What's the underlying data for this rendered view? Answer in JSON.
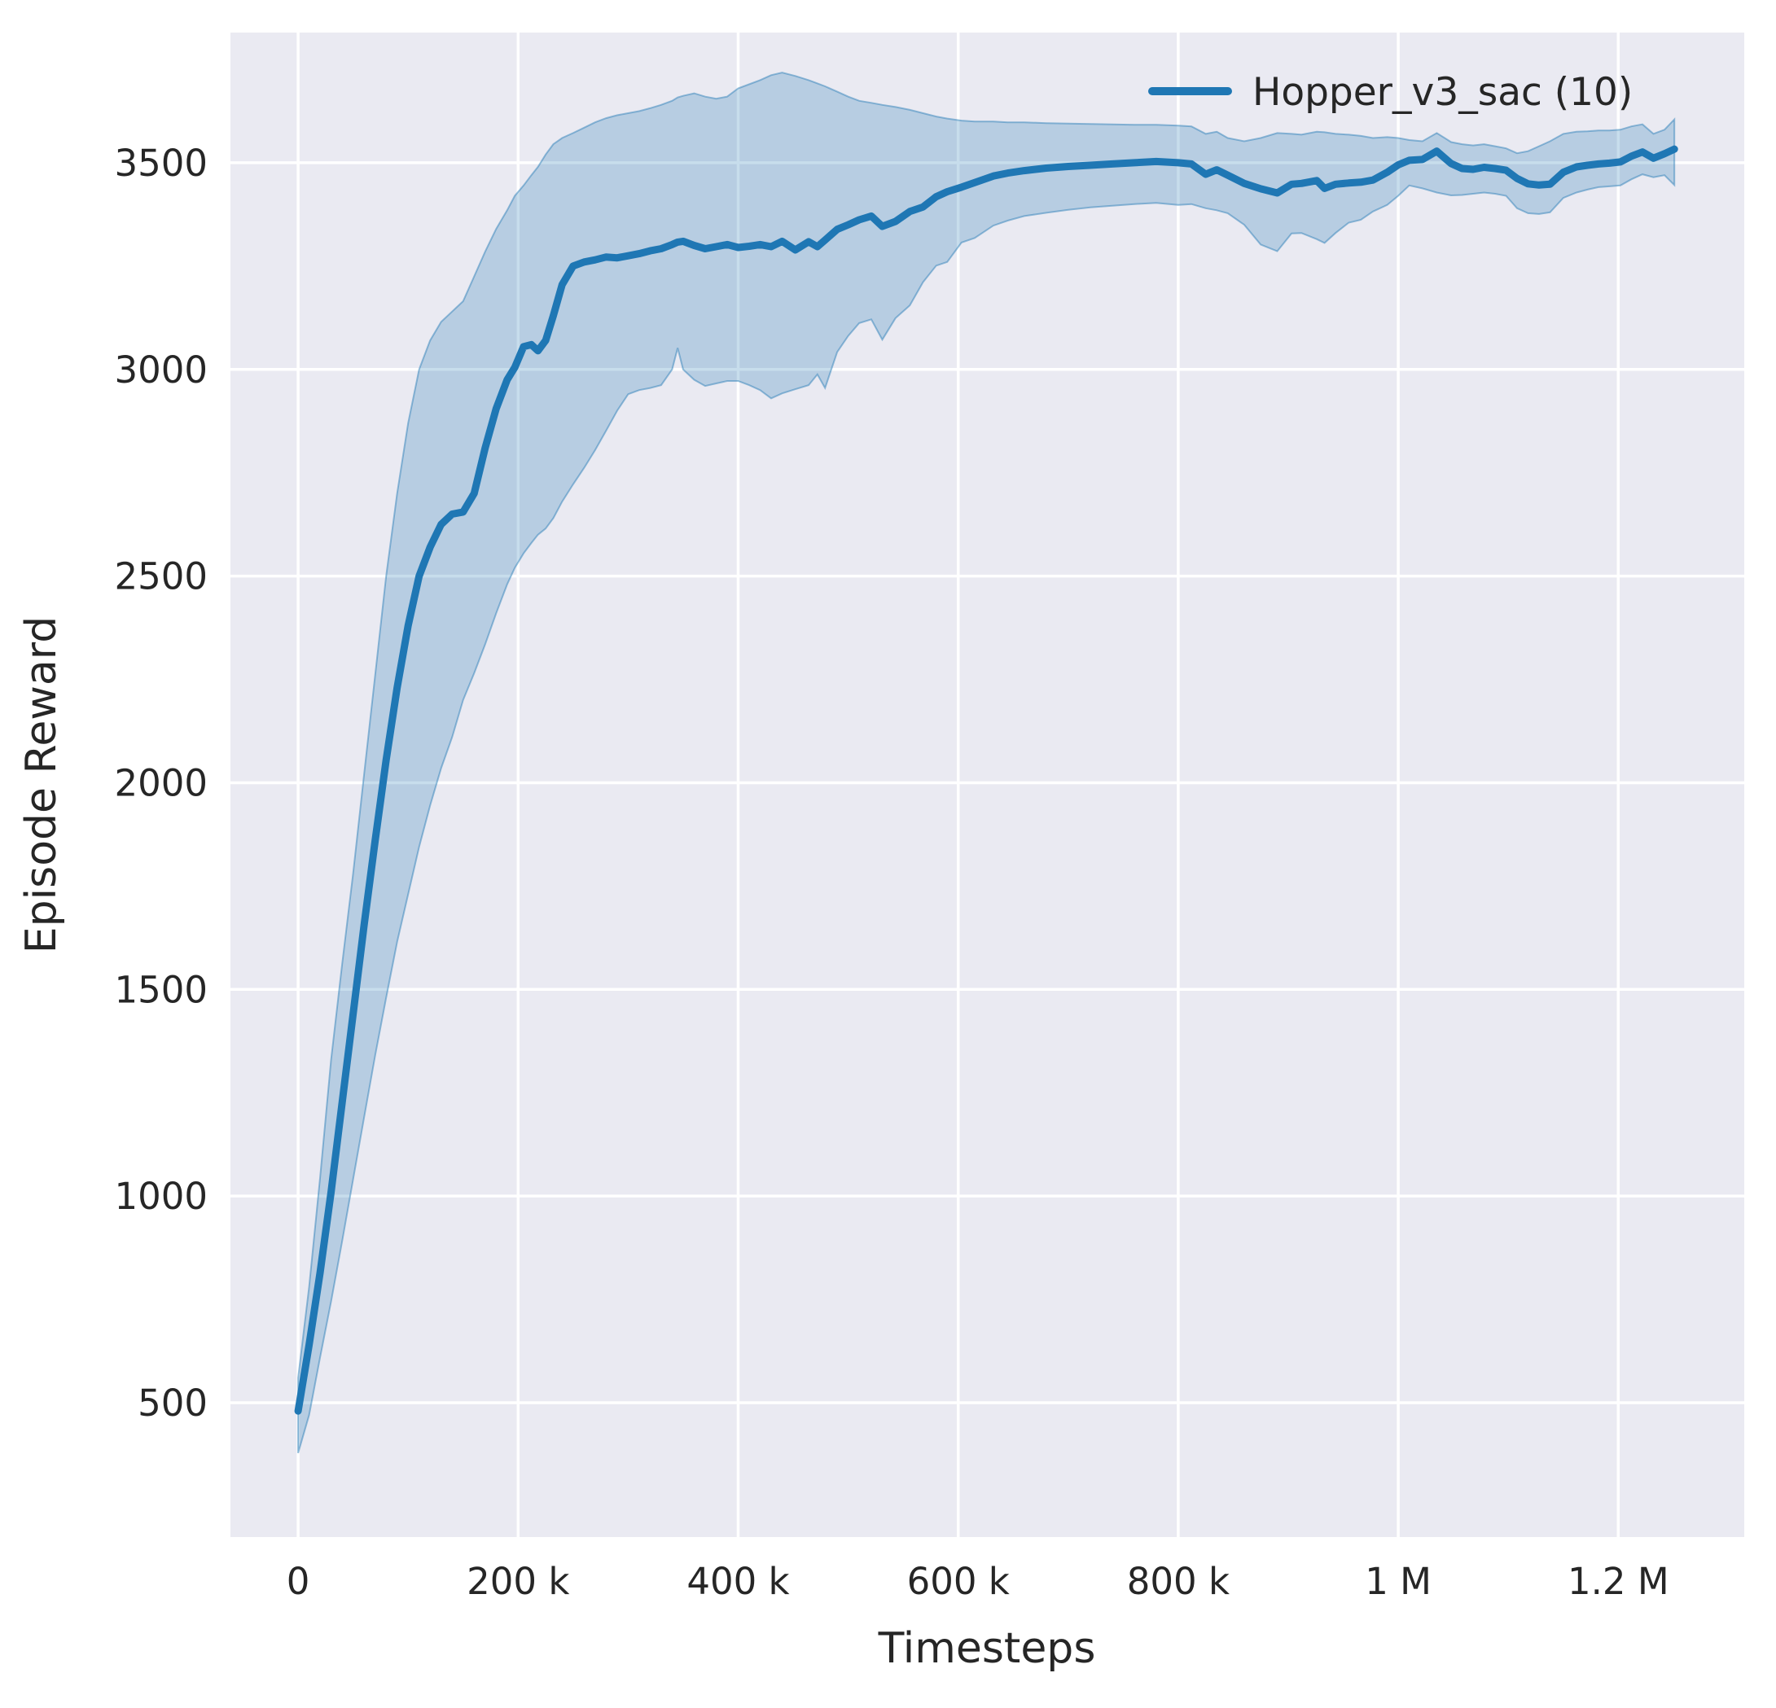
{
  "chart_data": {
    "type": "line",
    "title": "",
    "xlabel": "Timesteps",
    "ylabel": "Episode Reward",
    "grid": true,
    "legend_position": "upper right",
    "background_color": "#eaeaf2",
    "grid_color": "#ffffff",
    "text_color": "#262626",
    "xlim": [
      -61500,
      1314500
    ],
    "ylim": [
      175,
      3815
    ],
    "x_ticks": [
      {
        "value": 0,
        "label": "0"
      },
      {
        "value": 200000,
        "label": "200 k"
      },
      {
        "value": 400000,
        "label": "400 k"
      },
      {
        "value": 600000,
        "label": "600 k"
      },
      {
        "value": 800000,
        "label": "800 k"
      },
      {
        "value": 1000000,
        "label": "1 M"
      },
      {
        "value": 1200000,
        "label": "1.2 M"
      }
    ],
    "y_ticks": [
      {
        "value": 500,
        "label": "500"
      },
      {
        "value": 1000,
        "label": "1000"
      },
      {
        "value": 1500,
        "label": "1500"
      },
      {
        "value": 2000,
        "label": "2000"
      },
      {
        "value": 2500,
        "label": "2500"
      },
      {
        "value": 3000,
        "label": "3000"
      },
      {
        "value": 3500,
        "label": "3500"
      }
    ],
    "series": [
      {
        "name": "Hopper_v3_sac (10)",
        "color": "#1f77b4",
        "band_fill_opacity": 0.25,
        "band_edge_opacity": 0.45,
        "line_width": 9,
        "x_unit": 1000,
        "points_format": [
          "x_thousand_steps",
          "mean",
          "band_low",
          "band_high"
        ],
        "points": [
          [
            0,
            480,
            378,
            560
          ],
          [
            10,
            640,
            470,
            780
          ],
          [
            20,
            815,
            610,
            1045
          ],
          [
            30,
            1010,
            745,
            1330
          ],
          [
            40,
            1225,
            890,
            1560
          ],
          [
            50,
            1440,
            1040,
            1780
          ],
          [
            60,
            1655,
            1190,
            2020
          ],
          [
            70,
            1860,
            1340,
            2260
          ],
          [
            80,
            2055,
            1480,
            2500
          ],
          [
            90,
            2230,
            1615,
            2700
          ],
          [
            100,
            2380,
            1730,
            2870
          ],
          [
            110,
            2500,
            1845,
            3000
          ],
          [
            120,
            2570,
            1945,
            3070
          ],
          [
            130,
            2625,
            2035,
            3115
          ],
          [
            140,
            2650,
            2110,
            3140
          ],
          [
            150,
            2655,
            2200,
            3165
          ],
          [
            160,
            2700,
            2265,
            3225
          ],
          [
            170,
            2810,
            2335,
            3285
          ],
          [
            180,
            2905,
            2410,
            3340
          ],
          [
            190,
            2975,
            2480,
            3385
          ],
          [
            197,
            3005,
            2520,
            3420
          ],
          [
            205,
            3055,
            2555,
            3445
          ],
          [
            212,
            3060,
            2580,
            3470
          ],
          [
            218,
            3045,
            2600,
            3490
          ],
          [
            225,
            3070,
            2615,
            3520
          ],
          [
            232,
            3130,
            2640,
            3545
          ],
          [
            240,
            3205,
            2680,
            3560
          ],
          [
            250,
            3250,
            2722,
            3572
          ],
          [
            260,
            3260,
            2762,
            3585
          ],
          [
            270,
            3265,
            2805,
            3598
          ],
          [
            280,
            3272,
            2852,
            3608
          ],
          [
            290,
            3270,
            2900,
            3615
          ],
          [
            300,
            3275,
            2940,
            3620
          ],
          [
            310,
            3280,
            2950,
            3625
          ],
          [
            320,
            3287,
            2955,
            3632
          ],
          [
            330,
            3292,
            2962,
            3640
          ],
          [
            340,
            3302,
            3000,
            3650
          ],
          [
            345,
            3308,
            3052,
            3658
          ],
          [
            350,
            3310,
            3000,
            3662
          ],
          [
            360,
            3300,
            2975,
            3668
          ],
          [
            370,
            3292,
            2960,
            3660
          ],
          [
            380,
            3297,
            2966,
            3655
          ],
          [
            390,
            3302,
            2972,
            3660
          ],
          [
            400,
            3295,
            2972,
            3680
          ],
          [
            410,
            3298,
            2962,
            3690
          ],
          [
            420,
            3302,
            2950,
            3700
          ],
          [
            430,
            3297,
            2930,
            3712
          ],
          [
            440,
            3310,
            2942,
            3718
          ],
          [
            452,
            3289,
            2952,
            3710
          ],
          [
            464,
            3309,
            2962,
            3700
          ],
          [
            472,
            3297,
            2988,
            3692
          ],
          [
            479,
            3313,
            2955,
            3685
          ],
          [
            490,
            3339,
            3042,
            3672
          ],
          [
            500,
            3350,
            3081,
            3660
          ],
          [
            510,
            3362,
            3112,
            3650
          ],
          [
            521,
            3371,
            3121,
            3645
          ],
          [
            531,
            3346,
            3072,
            3640
          ],
          [
            543,
            3358,
            3124,
            3635
          ],
          [
            556,
            3382,
            3155,
            3628
          ],
          [
            568,
            3393,
            3211,
            3620
          ],
          [
            580,
            3418,
            3251,
            3612
          ],
          [
            590,
            3430,
            3260,
            3607
          ],
          [
            603,
            3441,
            3307,
            3602
          ],
          [
            615,
            3452,
            3318,
            3600
          ],
          [
            632,
            3468,
            3348,
            3600
          ],
          [
            645,
            3475,
            3360,
            3598
          ],
          [
            660,
            3481,
            3371,
            3598
          ],
          [
            680,
            3487,
            3379,
            3596
          ],
          [
            700,
            3491,
            3386,
            3595
          ],
          [
            720,
            3494,
            3392,
            3594
          ],
          [
            740,
            3497,
            3396,
            3593
          ],
          [
            760,
            3500,
            3400,
            3592
          ],
          [
            780,
            3503,
            3403,
            3592
          ],
          [
            800,
            3500,
            3398,
            3590
          ],
          [
            812,
            3497,
            3400,
            3588
          ],
          [
            825,
            3472,
            3390,
            3570
          ],
          [
            835,
            3483,
            3385,
            3575
          ],
          [
            845,
            3470,
            3378,
            3560
          ],
          [
            860,
            3450,
            3350,
            3552
          ],
          [
            875,
            3437,
            3302,
            3560
          ],
          [
            890,
            3427,
            3286,
            3572
          ],
          [
            903,
            3448,
            3329,
            3570
          ],
          [
            912,
            3450,
            3330,
            3568
          ],
          [
            926,
            3457,
            3315,
            3575
          ],
          [
            933,
            3438,
            3306,
            3574
          ],
          [
            943,
            3448,
            3330,
            3570
          ],
          [
            955,
            3451,
            3355,
            3568
          ],
          [
            966,
            3453,
            3362,
            3565
          ],
          [
            977,
            3458,
            3382,
            3560
          ],
          [
            990,
            3477,
            3398,
            3562
          ],
          [
            1000,
            3495,
            3420,
            3560
          ],
          [
            1010,
            3506,
            3445,
            3555
          ],
          [
            1022,
            3508,
            3438,
            3552
          ],
          [
            1035,
            3528,
            3428,
            3572
          ],
          [
            1048,
            3498,
            3421,
            3550
          ],
          [
            1058,
            3486,
            3422,
            3545
          ],
          [
            1068,
            3484,
            3425,
            3542
          ],
          [
            1078,
            3489,
            3428,
            3545
          ],
          [
            1088,
            3486,
            3425,
            3540
          ],
          [
            1098,
            3482,
            3420,
            3535
          ],
          [
            1108,
            3462,
            3390,
            3523
          ],
          [
            1118,
            3449,
            3378,
            3528
          ],
          [
            1128,
            3446,
            3376,
            3540
          ],
          [
            1138,
            3448,
            3380,
            3552
          ],
          [
            1150,
            3477,
            3415,
            3570
          ],
          [
            1162,
            3490,
            3428,
            3575
          ],
          [
            1172,
            3494,
            3435,
            3576
          ],
          [
            1182,
            3497,
            3441,
            3578
          ],
          [
            1192,
            3499,
            3443,
            3578
          ],
          [
            1202,
            3502,
            3445,
            3580
          ],
          [
            1212,
            3516,
            3460,
            3588
          ],
          [
            1222,
            3526,
            3472,
            3593
          ],
          [
            1232,
            3511,
            3465,
            3570
          ],
          [
            1242,
            3522,
            3470,
            3580
          ],
          [
            1251,
            3533,
            3446,
            3605
          ]
        ]
      }
    ]
  }
}
